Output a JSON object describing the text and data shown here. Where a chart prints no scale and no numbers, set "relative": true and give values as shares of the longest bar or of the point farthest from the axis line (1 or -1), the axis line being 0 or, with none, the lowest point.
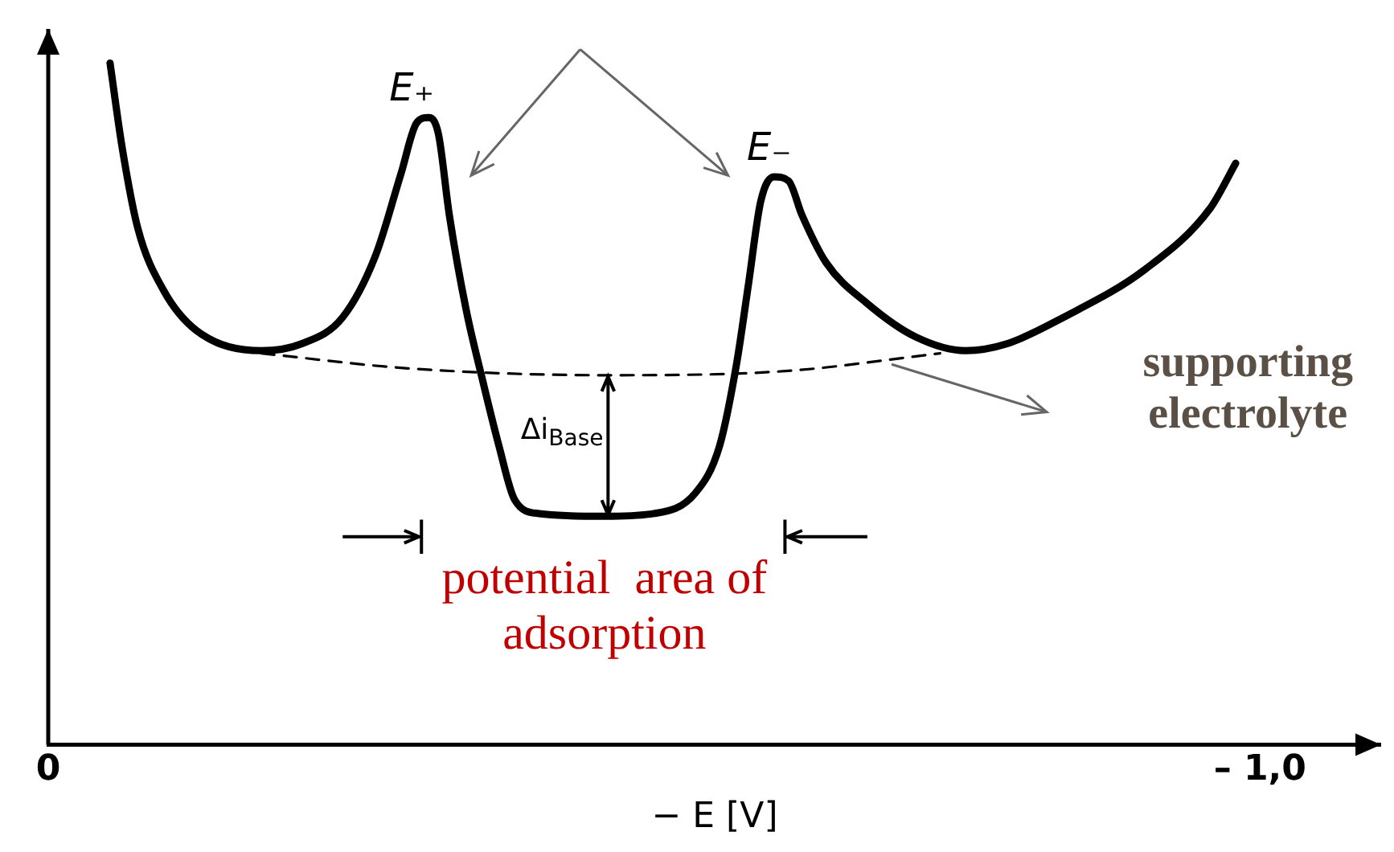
{
  "chart_data": {
    "type": "line",
    "relative": true,
    "xlabel": "− E [V]",
    "xlim": [
      0,
      -1.1
    ],
    "xticks": [
      0,
      {
        "value": -1,
        "label": "– 1,0"
      }
    ],
    "grid": false,
    "legend": false,
    "marker": "none",
    "series": [
      {
        "color": "#000000",
        "line_style": "solid",
        "x": [
          -0.051,
          -0.061,
          -0.074,
          -0.095,
          -0.122,
          -0.176,
          -0.209,
          -0.243,
          -0.27,
          -0.291,
          -0.304,
          -0.314,
          -0.322,
          -0.331,
          -0.345,
          -0.358,
          -0.372,
          -0.385,
          -0.405,
          -0.459,
          -0.5,
          -0.534,
          -0.554,
          -0.568,
          -0.578,
          -0.588,
          -0.599,
          -0.611,
          -0.622,
          -0.642,
          -0.676,
          -0.716,
          -0.757,
          -0.791,
          -0.838,
          -0.905,
          -0.959,
          -0.98
        ],
        "values": [
          1.0,
          0.876,
          0.757,
          0.667,
          0.608,
          0.578,
          0.588,
          0.627,
          0.717,
          0.837,
          0.912,
          0.92,
          0.896,
          0.777,
          0.637,
          0.538,
          0.438,
          0.359,
          0.339,
          0.335,
          0.339,
          0.369,
          0.438,
          0.558,
          0.677,
          0.797,
          0.833,
          0.827,
          0.777,
          0.707,
          0.647,
          0.598,
          0.578,
          0.588,
          0.627,
          0.697,
          0.787,
          0.853
        ]
      },
      {
        "color": "#000000",
        "line_style": "dashed",
        "x": [
          -0.176,
          -0.297,
          -0.459,
          -0.608,
          -0.736
        ],
        "values": [
          0.574,
          0.552,
          0.542,
          0.548,
          0.574
        ]
      }
    ],
    "annotations": [
      "E₊",
      "E₋",
      "Δi$_{Base}$",
      "supporting electrolyte",
      "potential  area of adsorption"
    ]
  }
}
